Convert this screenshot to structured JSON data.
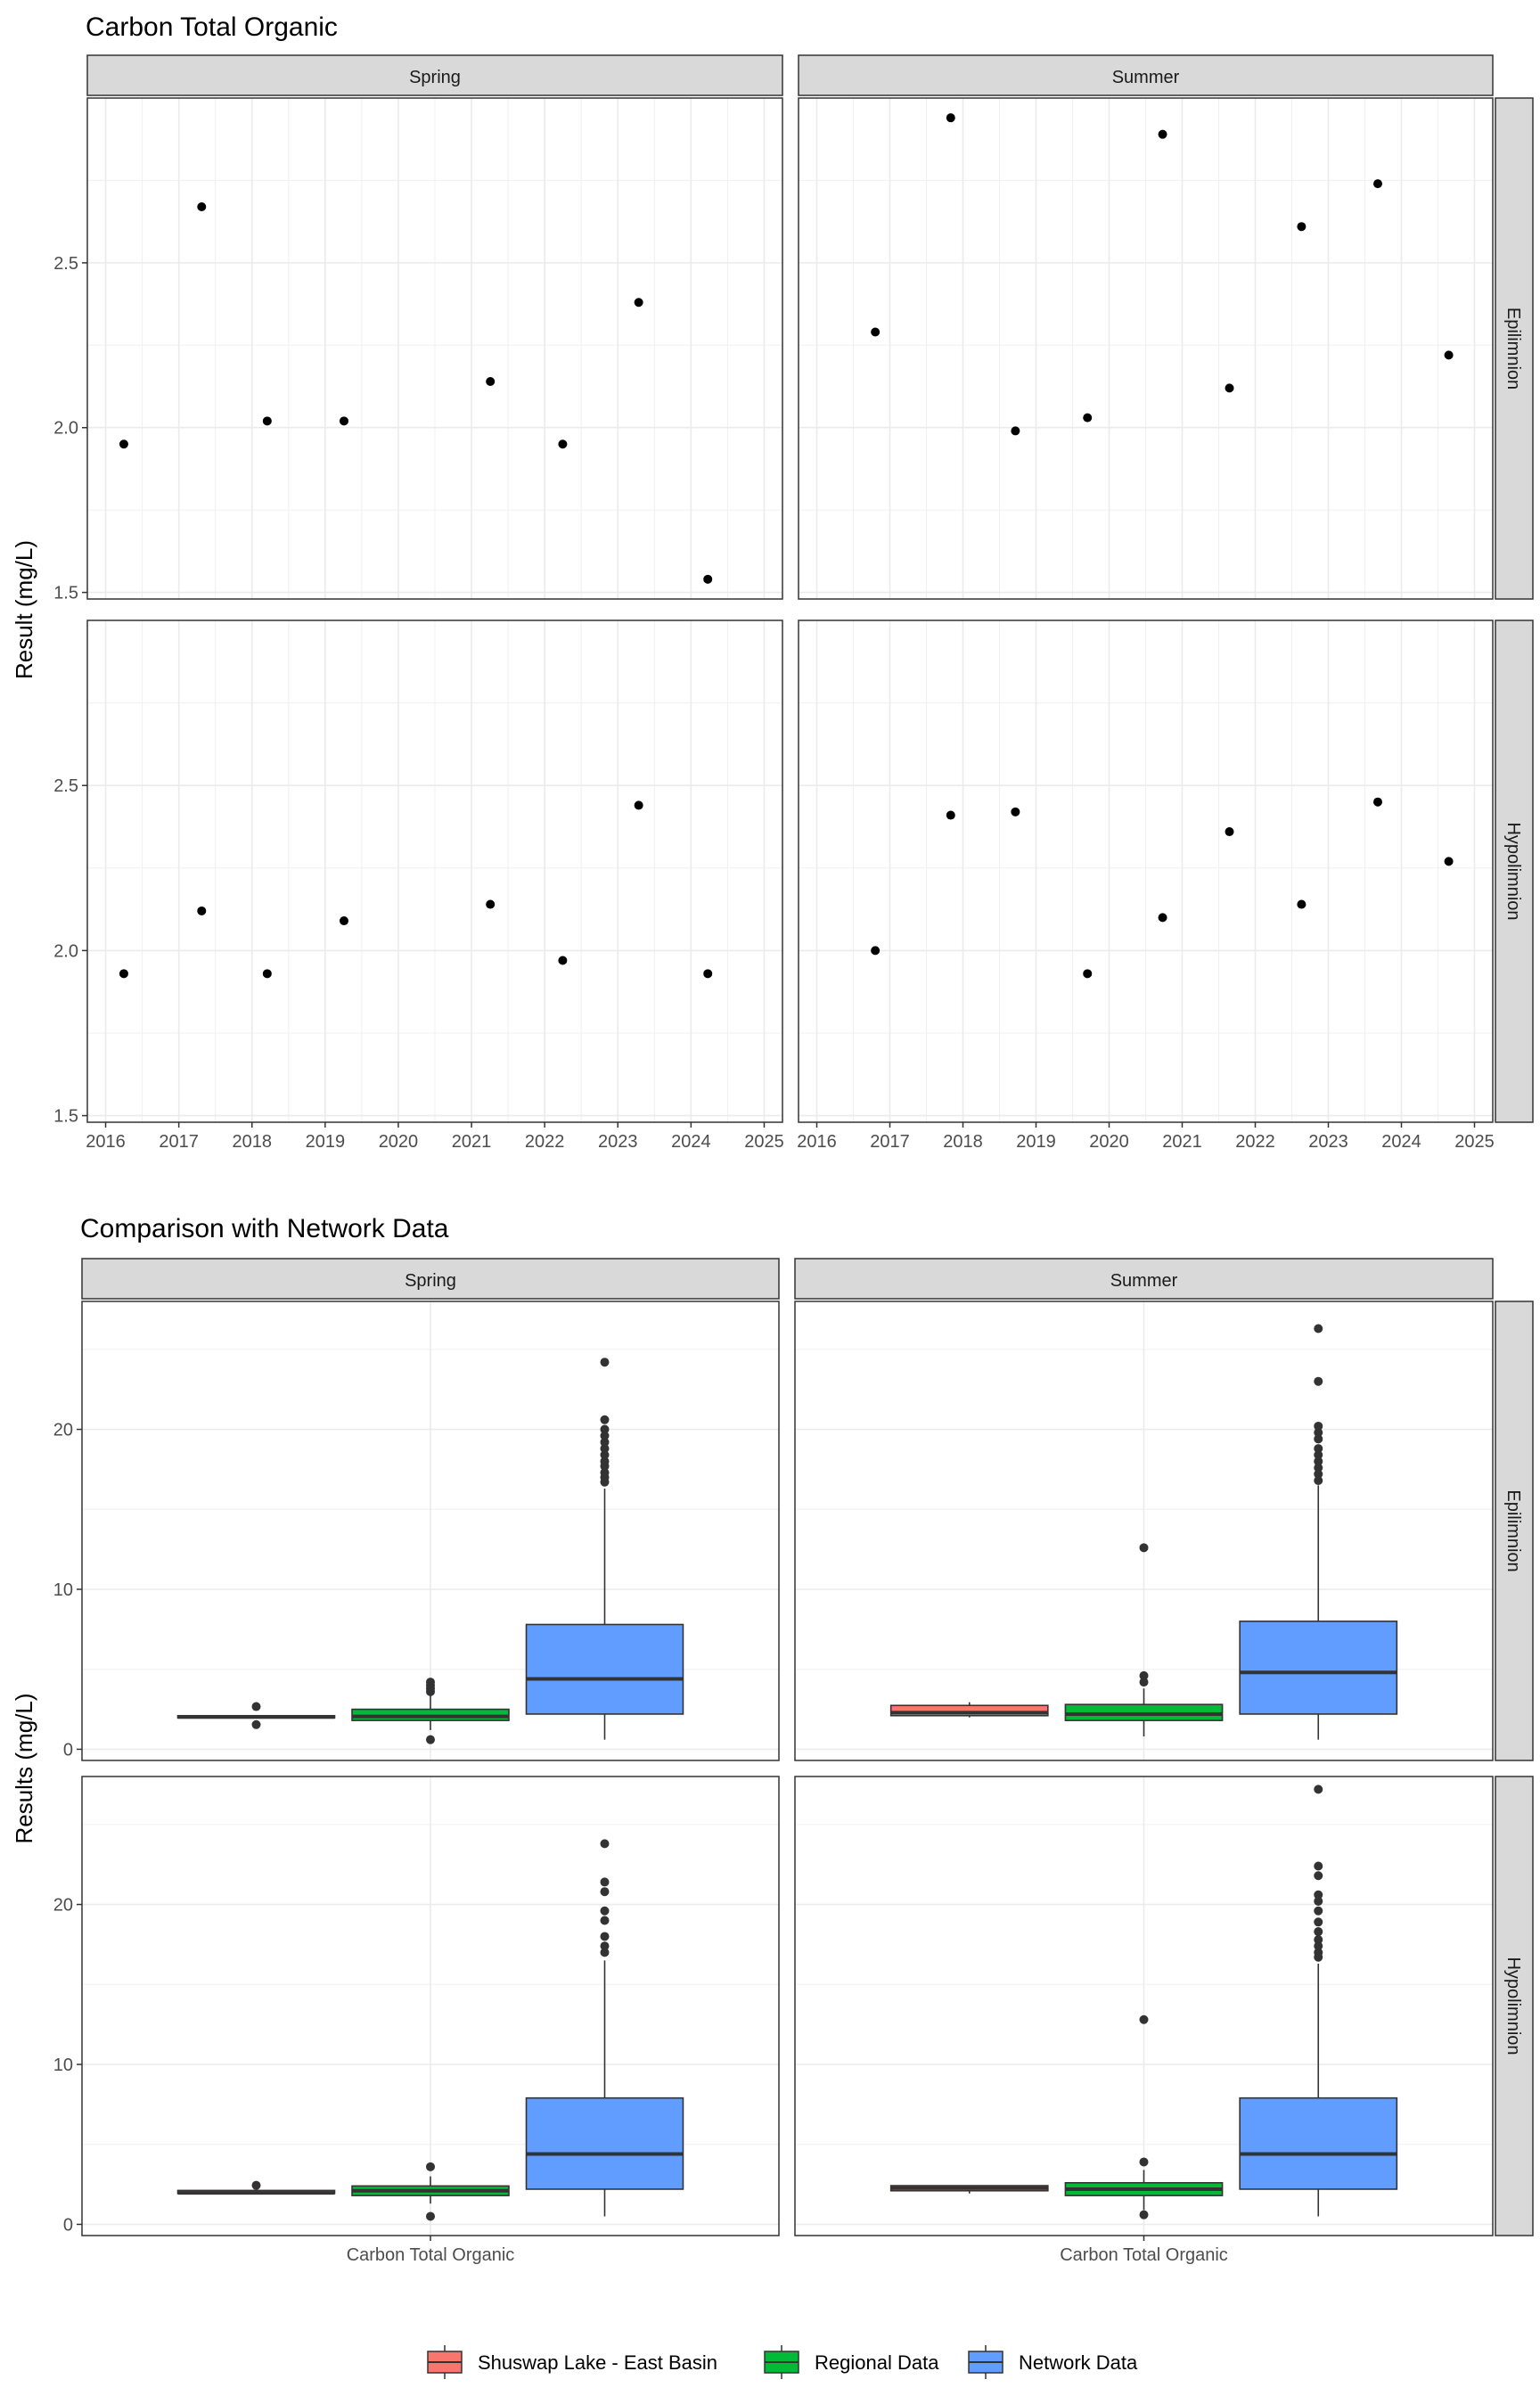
{
  "chart_data": [
    {
      "type": "scatter",
      "title": "Carbon Total Organic",
      "ylabel": "Result (mg/L)",
      "xlabel": "",
      "ylim": [
        1.48,
        3.0
      ],
      "xlim": [
        2015.75,
        2025.25
      ],
      "xticks": [
        "2016",
        "2017",
        "2018",
        "2019",
        "2020",
        "2021",
        "2022",
        "2023",
        "2024",
        "2025"
      ],
      "yticks": [
        "1.5",
        "2.0",
        "2.5"
      ],
      "columns": [
        "Spring",
        "Summer"
      ],
      "rows": [
        "Epilimnion",
        "Hypolimnion"
      ],
      "grid": true,
      "panels": [
        {
          "row": "Epilimnion",
          "column": "Spring",
          "points": [
            {
              "x": "2016-04-01",
              "y": 1.95
            },
            {
              "x": "2017-04-25",
              "y": 2.67
            },
            {
              "x": "2018-03-18",
              "y": 2.02
            },
            {
              "x": "2019-04-05",
              "y": 2.02
            },
            {
              "x": "2021-04-05",
              "y": 2.14
            },
            {
              "x": "2022-04-01",
              "y": 1.95
            },
            {
              "x": "2023-04-15",
              "y": 2.38
            },
            {
              "x": "2024-03-25",
              "y": 1.54
            }
          ]
        },
        {
          "row": "Epilimnion",
          "column": "Summer",
          "points": [
            {
              "x": "2016-10-20",
              "y": 2.29
            },
            {
              "x": "2017-11-01",
              "y": 2.94
            },
            {
              "x": "2018-09-20",
              "y": 1.99
            },
            {
              "x": "2019-09-15",
              "y": 2.03
            },
            {
              "x": "2020-09-25",
              "y": 2.89
            },
            {
              "x": "2021-08-25",
              "y": 2.12
            },
            {
              "x": "2022-08-20",
              "y": 2.61
            },
            {
              "x": "2023-09-05",
              "y": 2.74
            },
            {
              "x": "2024-08-25",
              "y": 2.22
            }
          ]
        },
        {
          "row": "Hypolimnion",
          "column": "Spring",
          "points": [
            {
              "x": "2016-04-01",
              "y": 1.93
            },
            {
              "x": "2017-04-25",
              "y": 2.12
            },
            {
              "x": "2018-03-18",
              "y": 1.93
            },
            {
              "x": "2019-04-05",
              "y": 2.09
            },
            {
              "x": "2021-04-05",
              "y": 2.14
            },
            {
              "x": "2022-04-01",
              "y": 1.97
            },
            {
              "x": "2023-04-15",
              "y": 2.44
            },
            {
              "x": "2024-03-25",
              "y": 1.93
            }
          ]
        },
        {
          "row": "Hypolimnion",
          "column": "Summer",
          "points": [
            {
              "x": "2016-10-20",
              "y": 2.0
            },
            {
              "x": "2017-11-01",
              "y": 2.41
            },
            {
              "x": "2018-09-20",
              "y": 2.42
            },
            {
              "x": "2019-09-15",
              "y": 1.93
            },
            {
              "x": "2020-09-25",
              "y": 2.1
            },
            {
              "x": "2021-08-25",
              "y": 2.36
            },
            {
              "x": "2022-08-20",
              "y": 2.14
            },
            {
              "x": "2023-09-05",
              "y": 2.45
            },
            {
              "x": "2024-08-25",
              "y": 2.27
            }
          ]
        }
      ]
    },
    {
      "type": "box",
      "title": "Comparison with Network Data",
      "ylabel": "Results (mg/L)",
      "xlabel": "",
      "categories": [
        "Carbon Total Organic"
      ],
      "ylim": [
        -0.7,
        28
      ],
      "yticks": [
        "0",
        "10",
        "20"
      ],
      "columns": [
        "Spring",
        "Summer"
      ],
      "rows": [
        "Epilimnion",
        "Hypolimnion"
      ],
      "grid": true,
      "legend": {
        "position": "bottom",
        "items": [
          {
            "label": "Shuswap Lake - East Basin",
            "color": "#F8766D"
          },
          {
            "label": "Regional Data",
            "color": "#00BA38"
          },
          {
            "label": "Network Data",
            "color": "#619CFF"
          }
        ]
      },
      "panels": [
        {
          "row": "Epilimnion",
          "column": "Spring",
          "boxes": [
            {
              "group": "Shuswap Lake - East Basin",
              "min": 1.95,
              "q1": 1.96,
              "median": 2.02,
              "q3": 2.1,
              "max": 2.14,
              "outliers": [
                2.67,
                1.54
              ]
            },
            {
              "group": "Regional Data",
              "min": 1.2,
              "q1": 1.8,
              "median": 2.05,
              "q3": 2.5,
              "max": 3.4,
              "outliers": [
                3.6,
                3.8,
                4.0,
                4.2,
                0.6
              ]
            },
            {
              "group": "Network Data",
              "min": 0.6,
              "q1": 2.2,
              "median": 4.4,
              "q3": 7.8,
              "max": 16.3,
              "outliers": [
                16.7,
                17.0,
                17.3,
                17.7,
                18.0,
                18.4,
                18.8,
                19.2,
                19.6,
                20.0,
                20.6,
                24.2
              ]
            }
          ]
        },
        {
          "row": "Epilimnion",
          "column": "Summer",
          "boxes": [
            {
              "group": "Shuswap Lake - East Basin",
              "min": 1.99,
              "q1": 2.1,
              "median": 2.29,
              "q3": 2.74,
              "max": 2.94,
              "outliers": []
            },
            {
              "group": "Regional Data",
              "min": 0.8,
              "q1": 1.8,
              "median": 2.2,
              "q3": 2.8,
              "max": 3.8,
              "outliers": [
                4.2,
                4.6,
                12.6
              ]
            },
            {
              "group": "Network Data",
              "min": 0.6,
              "q1": 2.2,
              "median": 4.8,
              "q3": 8.0,
              "max": 16.5,
              "outliers": [
                16.8,
                17.2,
                17.6,
                18.0,
                18.4,
                18.8,
                19.4,
                19.8,
                20.2,
                23.0,
                26.3
              ]
            }
          ]
        },
        {
          "row": "Hypolimnion",
          "column": "Spring",
          "boxes": [
            {
              "group": "Shuswap Lake - East Basin",
              "min": 1.93,
              "q1": 1.93,
              "median": 1.97,
              "q3": 2.12,
              "max": 2.14,
              "outliers": [
                2.44
              ]
            },
            {
              "group": "Regional Data",
              "min": 1.3,
              "q1": 1.8,
              "median": 2.1,
              "q3": 2.4,
              "max": 3.0,
              "outliers": [
                3.6,
                0.5
              ]
            },
            {
              "group": "Network Data",
              "min": 0.5,
              "q1": 2.2,
              "median": 4.4,
              "q3": 7.9,
              "max": 16.5,
              "outliers": [
                17.0,
                17.4,
                18.0,
                19.0,
                19.6,
                20.8,
                21.4,
                23.8
              ]
            }
          ]
        },
        {
          "row": "Hypolimnion",
          "column": "Summer",
          "boxes": [
            {
              "group": "Shuswap Lake - East Basin",
              "min": 1.93,
              "q1": 2.1,
              "median": 2.27,
              "q3": 2.42,
              "max": 2.45,
              "outliers": []
            },
            {
              "group": "Regional Data",
              "min": 0.9,
              "q1": 1.8,
              "median": 2.2,
              "q3": 2.6,
              "max": 3.4,
              "outliers": [
                3.9,
                0.6,
                12.8
              ]
            },
            {
              "group": "Network Data",
              "min": 0.5,
              "q1": 2.2,
              "median": 4.4,
              "q3": 7.9,
              "max": 16.3,
              "outliers": [
                16.7,
                17.0,
                17.4,
                17.8,
                18.3,
                18.9,
                19.6,
                20.2,
                20.6,
                21.8,
                22.4,
                27.2
              ]
            }
          ]
        }
      ]
    }
  ]
}
